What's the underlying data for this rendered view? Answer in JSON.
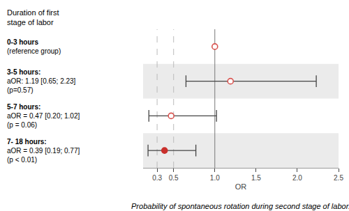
{
  "chart_data": {
    "type": "forest",
    "title": "Probability of spontaneous rotation during second stage of labor.",
    "xlabel": "OR",
    "ylabel": "Duration of first\nstage of labor",
    "categories": [
      "0-3 hours\n(reference group)",
      "3-5 hours:\naOR: 1.19 [0.65; 2.23]\n(p=0.57)",
      "5-7 hours:\naOR = 0.47 [0.20; 1.02]\n(p = 0.06)",
      "7- 18 hours:\naOR = 0.39 [0.19; 0.77]\n(p < 0.01)"
    ],
    "values": [
      1.0,
      1.19,
      0.47,
      0.39
    ],
    "ci_low": [
      null,
      0.65,
      0.2,
      0.19
    ],
    "ci_high": [
      null,
      2.23,
      1.02,
      0.77
    ],
    "markers": [
      "open",
      "open",
      "open",
      "filled"
    ],
    "colors": [
      "#d9534f",
      "#d9534f",
      "#d9534f",
      "#c9302c"
    ],
    "color": "#444444",
    "shade_color": "#ebebeb",
    "vlines": [
      {
        "value": 0.3,
        "line_style": "dashed",
        "color": "#bbbbbb"
      },
      {
        "value": 0.5,
        "line_style": "dashed",
        "color": "#bbbbbb"
      },
      {
        "value": 1.0,
        "line_style": "solid",
        "color": "#777777"
      }
    ],
    "xlim": [
      0.13,
      2.5
    ],
    "xticks": [
      0.3,
      0.5,
      {
        "value": 1.0,
        "label": "1.0"
      },
      1.5,
      {
        "value": 2.0,
        "label": "2.0"
      },
      2.5
    ],
    "grid": false
  }
}
